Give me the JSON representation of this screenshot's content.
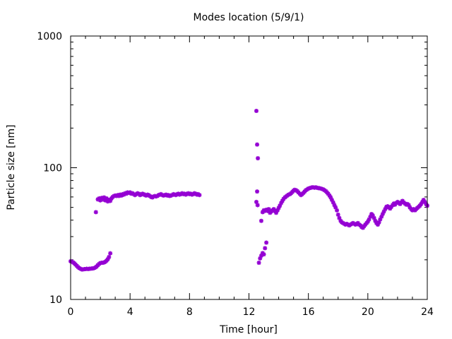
{
  "chart_data": {
    "type": "scatter",
    "title": "Modes location (5/9/1)",
    "xlabel": "Time [hour]",
    "ylabel": "Particle size [nm]",
    "xlim": [
      0,
      24
    ],
    "ylim": [
      10,
      1000
    ],
    "yscale": "log",
    "grid": false,
    "legend": "none",
    "x_ticks": [
      0,
      4,
      8,
      12,
      16,
      20,
      24
    ],
    "y_ticks": [
      10,
      100,
      1000
    ],
    "marker_color": "#9400d3",
    "series": [
      {
        "points": [
          [
            0.0,
            19.5
          ],
          [
            0.08,
            19.4
          ],
          [
            0.17,
            19.1
          ],
          [
            0.25,
            18.8
          ],
          [
            0.33,
            18.4
          ],
          [
            0.42,
            18.0
          ],
          [
            0.5,
            17.6
          ],
          [
            0.58,
            17.3
          ],
          [
            0.67,
            17.1
          ],
          [
            0.75,
            16.9
          ],
          [
            0.83,
            16.9
          ],
          [
            0.92,
            17.0
          ],
          [
            1.0,
            17.0
          ],
          [
            1.08,
            17.1
          ],
          [
            1.17,
            17.0
          ],
          [
            1.25,
            17.1
          ],
          [
            1.33,
            17.1
          ],
          [
            1.42,
            17.2
          ],
          [
            1.5,
            17.2
          ],
          [
            1.58,
            17.3
          ],
          [
            1.67,
            17.5
          ],
          [
            1.75,
            17.8
          ],
          [
            1.83,
            18.2
          ],
          [
            1.92,
            18.6
          ],
          [
            2.0,
            18.9
          ],
          [
            2.08,
            19.0
          ],
          [
            2.17,
            19.0
          ],
          [
            2.25,
            19.1
          ],
          [
            2.33,
            19.3
          ],
          [
            2.42,
            19.7
          ],
          [
            2.5,
            20.2
          ],
          [
            2.58,
            21.0
          ],
          [
            2.67,
            22.4
          ],
          [
            1.7,
            46.0
          ],
          [
            1.83,
            57.5
          ],
          [
            1.92,
            58.5
          ],
          [
            2.0,
            56.5
          ],
          [
            2.08,
            59.0
          ],
          [
            2.17,
            57.5
          ],
          [
            2.25,
            59.5
          ],
          [
            2.33,
            56.5
          ],
          [
            2.42,
            58.5
          ],
          [
            2.5,
            55.5
          ],
          [
            2.58,
            57.0
          ],
          [
            2.67,
            56.0
          ],
          [
            2.75,
            58.5
          ],
          [
            2.83,
            60.0
          ],
          [
            2.92,
            61.0
          ],
          [
            3.0,
            61.5
          ],
          [
            3.08,
            61.0
          ],
          [
            3.17,
            62.0
          ],
          [
            3.25,
            61.0
          ],
          [
            3.33,
            62.5
          ],
          [
            3.42,
            61.5
          ],
          [
            3.5,
            63.0
          ],
          [
            3.58,
            62.5
          ],
          [
            3.67,
            64.0
          ],
          [
            3.75,
            63.5
          ],
          [
            3.83,
            65.0
          ],
          [
            3.92,
            64.5
          ],
          [
            4.0,
            65.0
          ],
          [
            4.08,
            63.5
          ],
          [
            4.17,
            64.0
          ],
          [
            4.25,
            63.0
          ],
          [
            4.33,
            62.0
          ],
          [
            4.42,
            63.0
          ],
          [
            4.5,
            64.0
          ],
          [
            4.58,
            63.5
          ],
          [
            4.67,
            62.0
          ],
          [
            4.75,
            62.5
          ],
          [
            4.83,
            63.5
          ],
          [
            4.92,
            63.0
          ],
          [
            5.0,
            62.0
          ],
          [
            5.08,
            61.5
          ],
          [
            5.17,
            62.5
          ],
          [
            5.25,
            62.0
          ],
          [
            5.33,
            61.0
          ],
          [
            5.42,
            60.0
          ],
          [
            5.5,
            59.5
          ],
          [
            5.58,
            60.5
          ],
          [
            5.67,
            61.0
          ],
          [
            5.75,
            60.5
          ],
          [
            5.83,
            61.0
          ],
          [
            5.92,
            62.0
          ],
          [
            6.0,
            62.5
          ],
          [
            6.08,
            63.0
          ],
          [
            6.17,
            62.0
          ],
          [
            6.25,
            61.5
          ],
          [
            6.33,
            62.0
          ],
          [
            6.42,
            62.5
          ],
          [
            6.5,
            61.5
          ],
          [
            6.58,
            62.0
          ],
          [
            6.67,
            61.0
          ],
          [
            6.75,
            61.5
          ],
          [
            6.83,
            62.0
          ],
          [
            6.92,
            63.0
          ],
          [
            7.0,
            62.5
          ],
          [
            7.08,
            62.0
          ],
          [
            7.17,
            63.0
          ],
          [
            7.25,
            63.5
          ],
          [
            7.33,
            62.5
          ],
          [
            7.42,
            63.0
          ],
          [
            7.5,
            64.0
          ],
          [
            7.58,
            63.0
          ],
          [
            7.67,
            63.5
          ],
          [
            7.75,
            62.5
          ],
          [
            7.83,
            63.5
          ],
          [
            7.92,
            64.0
          ],
          [
            8.0,
            63.0
          ],
          [
            8.08,
            63.5
          ],
          [
            8.17,
            62.5
          ],
          [
            8.25,
            63.0
          ],
          [
            8.33,
            64.0
          ],
          [
            8.42,
            63.5
          ],
          [
            8.5,
            62.5
          ],
          [
            8.58,
            63.0
          ],
          [
            8.67,
            62.0
          ],
          [
            12.5,
            270.0
          ],
          [
            12.55,
            150.0
          ],
          [
            12.6,
            118.0
          ],
          [
            12.55,
            66.0
          ],
          [
            12.5,
            55.0
          ],
          [
            12.58,
            52.0
          ],
          [
            12.67,
            19.0
          ],
          [
            12.75,
            20.5
          ],
          [
            12.83,
            21.5
          ],
          [
            12.92,
            22.5
          ],
          [
            13.0,
            22.0
          ],
          [
            13.08,
            24.5
          ],
          [
            13.17,
            27.0
          ],
          [
            12.83,
            39.5
          ],
          [
            12.92,
            46.0
          ],
          [
            13.0,
            47.5
          ],
          [
            13.08,
            47.0
          ],
          [
            13.17,
            48.0
          ],
          [
            13.25,
            47.0
          ],
          [
            13.33,
            48.5
          ],
          [
            13.42,
            45.5
          ],
          [
            13.5,
            46.5
          ],
          [
            13.58,
            47.5
          ],
          [
            13.67,
            48.5
          ],
          [
            13.75,
            47.0
          ],
          [
            13.83,
            45.5
          ],
          [
            13.92,
            47.5
          ],
          [
            14.0,
            49.5
          ],
          [
            14.08,
            51.5
          ],
          [
            14.17,
            54.0
          ],
          [
            14.25,
            56.0
          ],
          [
            14.33,
            58.0
          ],
          [
            14.42,
            59.5
          ],
          [
            14.5,
            60.5
          ],
          [
            14.58,
            61.5
          ],
          [
            14.67,
            62.5
          ],
          [
            14.75,
            63.0
          ],
          [
            14.83,
            64.0
          ],
          [
            14.92,
            65.5
          ],
          [
            15.0,
            67.0
          ],
          [
            15.08,
            68.0
          ],
          [
            15.17,
            67.5
          ],
          [
            15.25,
            66.5
          ],
          [
            15.33,
            65.0
          ],
          [
            15.42,
            63.5
          ],
          [
            15.5,
            62.0
          ],
          [
            15.58,
            63.0
          ],
          [
            15.67,
            64.5
          ],
          [
            15.75,
            66.0
          ],
          [
            15.83,
            67.5
          ],
          [
            15.92,
            68.5
          ],
          [
            16.0,
            69.5
          ],
          [
            16.08,
            70.0
          ],
          [
            16.17,
            70.5
          ],
          [
            16.25,
            71.0
          ],
          [
            16.33,
            71.0
          ],
          [
            16.42,
            70.5
          ],
          [
            16.5,
            71.0
          ],
          [
            16.58,
            70.5
          ],
          [
            16.67,
            70.0
          ],
          [
            16.75,
            70.0
          ],
          [
            16.83,
            69.5
          ],
          [
            16.92,
            69.0
          ],
          [
            17.0,
            68.5
          ],
          [
            17.08,
            67.5
          ],
          [
            17.17,
            66.5
          ],
          [
            17.25,
            65.0
          ],
          [
            17.33,
            63.5
          ],
          [
            17.42,
            61.5
          ],
          [
            17.5,
            59.5
          ],
          [
            17.58,
            57.0
          ],
          [
            17.67,
            54.5
          ],
          [
            17.75,
            52.0
          ],
          [
            17.83,
            50.0
          ],
          [
            17.92,
            47.5
          ],
          [
            18.0,
            44.0
          ],
          [
            18.08,
            41.5
          ],
          [
            18.17,
            39.5
          ],
          [
            18.25,
            38.5
          ],
          [
            18.33,
            38.0
          ],
          [
            18.42,
            37.5
          ],
          [
            18.5,
            37.0
          ],
          [
            18.58,
            37.5
          ],
          [
            18.67,
            37.0
          ],
          [
            18.75,
            36.5
          ],
          [
            18.83,
            37.0
          ],
          [
            18.92,
            37.5
          ],
          [
            19.0,
            38.0
          ],
          [
            19.08,
            37.5
          ],
          [
            19.17,
            37.0
          ],
          [
            19.25,
            37.5
          ],
          [
            19.33,
            38.0
          ],
          [
            19.42,
            37.0
          ],
          [
            19.5,
            36.5
          ],
          [
            19.58,
            35.5
          ],
          [
            19.67,
            35.0
          ],
          [
            19.75,
            36.0
          ],
          [
            19.83,
            37.0
          ],
          [
            19.92,
            38.0
          ],
          [
            20.0,
            39.0
          ],
          [
            20.08,
            40.5
          ],
          [
            20.17,
            42.5
          ],
          [
            20.25,
            44.5
          ],
          [
            20.33,
            43.5
          ],
          [
            20.42,
            41.5
          ],
          [
            20.5,
            39.5
          ],
          [
            20.58,
            38.0
          ],
          [
            20.67,
            37.0
          ],
          [
            20.75,
            38.5
          ],
          [
            20.83,
            40.5
          ],
          [
            20.92,
            42.5
          ],
          [
            21.0,
            44.5
          ],
          [
            21.08,
            46.5
          ],
          [
            21.17,
            48.5
          ],
          [
            21.25,
            50.5
          ],
          [
            21.33,
            51.0
          ],
          [
            21.42,
            50.0
          ],
          [
            21.5,
            49.0
          ],
          [
            21.58,
            50.5
          ],
          [
            21.67,
            52.0
          ],
          [
            21.75,
            53.5
          ],
          [
            21.83,
            52.5
          ],
          [
            21.92,
            54.0
          ],
          [
            22.0,
            55.0
          ],
          [
            22.08,
            54.0
          ],
          [
            22.17,
            53.0
          ],
          [
            22.25,
            54.5
          ],
          [
            22.33,
            56.0
          ],
          [
            22.42,
            54.5
          ],
          [
            22.5,
            53.5
          ],
          [
            22.58,
            52.5
          ],
          [
            22.67,
            53.0
          ],
          [
            22.75,
            52.0
          ],
          [
            22.83,
            50.0
          ],
          [
            22.92,
            48.5
          ],
          [
            23.0,
            47.5
          ],
          [
            23.08,
            48.5
          ],
          [
            23.17,
            47.5
          ],
          [
            23.25,
            48.5
          ],
          [
            23.33,
            49.5
          ],
          [
            23.42,
            50.5
          ],
          [
            23.5,
            51.5
          ],
          [
            23.58,
            53.0
          ],
          [
            23.67,
            55.0
          ],
          [
            23.75,
            57.0
          ],
          [
            23.83,
            55.0
          ],
          [
            23.92,
            53.0
          ],
          [
            24.0,
            51.5
          ]
        ]
      }
    ]
  }
}
